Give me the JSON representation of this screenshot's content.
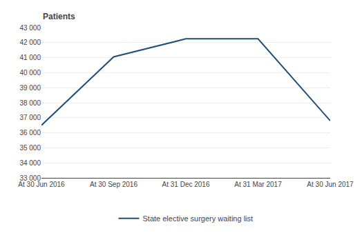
{
  "chart_data": {
    "type": "line",
    "ylabel": "Patients",
    "categories": [
      "At 30 Jun 2016",
      "At 30 Sep 2016",
      "At 31 Dec 2016",
      "At 31 Mar 2017",
      "At 30 Jun 2017"
    ],
    "series": [
      {
        "name": "State elective surgery waiting list",
        "color": "#1F4E79",
        "values": [
          36500,
          41050,
          42250,
          42250,
          36800
        ]
      }
    ],
    "ylim": [
      33000,
      43000
    ],
    "yticks": [
      {
        "value": 33000,
        "label": "33 000"
      },
      {
        "value": 34000,
        "label": "34 000"
      },
      {
        "value": 35000,
        "label": "35 000"
      },
      {
        "value": 36000,
        "label": "36 000"
      },
      {
        "value": 37000,
        "label": "37 000"
      },
      {
        "value": 38000,
        "label": "38 000"
      },
      {
        "value": 39000,
        "label": "39 000"
      },
      {
        "value": 40000,
        "label": "40 000"
      },
      {
        "value": 41000,
        "label": "41 000"
      },
      {
        "value": 42000,
        "label": "42 000"
      },
      {
        "value": 43000,
        "label": "43 000"
      }
    ],
    "grid": true,
    "legend": "bottom"
  }
}
